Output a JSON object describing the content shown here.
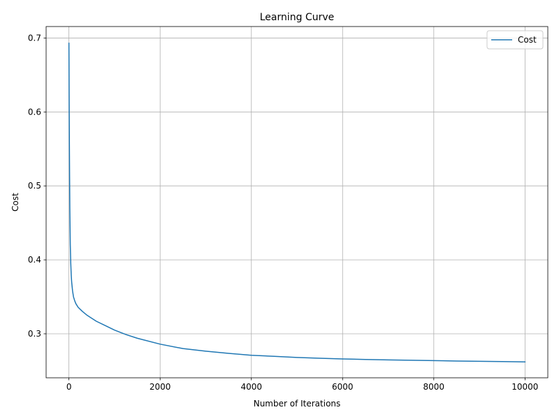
{
  "chart_data": {
    "type": "line",
    "title": "Learning Curve",
    "xlabel": "Number of Iterations",
    "ylabel": "Cost",
    "xlim": [
      -500,
      10500
    ],
    "ylim": [
      0.2405,
      0.7155
    ],
    "grid": true,
    "legend_placement": "top-right",
    "x_ticks": [
      0,
      2000,
      4000,
      6000,
      8000,
      10000
    ],
    "x_tick_labels": [
      "0",
      "2000",
      "4000",
      "6000",
      "8000",
      "10000"
    ],
    "y_ticks": [
      0.3,
      0.4,
      0.5,
      0.6,
      0.7
    ],
    "y_tick_labels": [
      "0.3",
      "0.4",
      "0.5",
      "0.6",
      "0.7"
    ],
    "series": [
      {
        "name": "Cost",
        "color": "#1f77b4",
        "x": [
          0,
          5,
          10,
          15,
          20,
          30,
          40,
          50,
          60,
          80,
          100,
          125,
          150,
          200,
          250,
          300,
          400,
          500,
          600,
          800,
          1000,
          1250,
          1500,
          2000,
          2500,
          3000,
          3500,
          4000,
          4500,
          5000,
          5500,
          6000,
          6500,
          7000,
          7500,
          8000,
          8500,
          9000,
          9500,
          10000
        ],
        "y": [
          0.693,
          0.62,
          0.56,
          0.51,
          0.47,
          0.42,
          0.396,
          0.38,
          0.37,
          0.358,
          0.35,
          0.345,
          0.341,
          0.336,
          0.333,
          0.33,
          0.325,
          0.321,
          0.317,
          0.311,
          0.305,
          0.299,
          0.294,
          0.286,
          0.28,
          0.2765,
          0.2735,
          0.271,
          0.2695,
          0.268,
          0.267,
          0.266,
          0.2653,
          0.2647,
          0.2642,
          0.2637,
          0.2632,
          0.2628,
          0.2624,
          0.262
        ]
      }
    ]
  }
}
